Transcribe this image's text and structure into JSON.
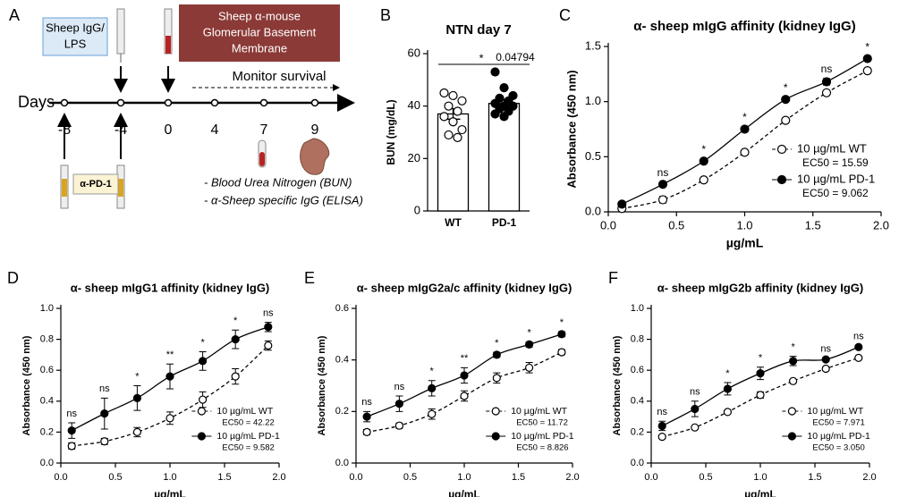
{
  "diagram": {
    "panel": "A",
    "axis_label": "Days",
    "days": [
      "-8",
      "-4",
      "0",
      "4",
      "7",
      "9"
    ],
    "injection_1": [
      "Sheep IgG/",
      "LPS"
    ],
    "injection_2": [
      "Sheep α-mouse",
      "Glomerular Basement",
      "Membrane"
    ],
    "treatment": "α-PD-1",
    "monitor": "Monitor survival",
    "readouts": [
      "- Blood Urea Nitrogen (BUN)",
      "- α-Sheep specific IgG (ELISA)"
    ]
  },
  "chart_data": [
    {
      "panel": "B",
      "type": "bar",
      "title": "NTN day 7",
      "ylabel": "BUN (mg/dL)",
      "categories": [
        "WT",
        "PD-1"
      ],
      "values": [
        37,
        41
      ],
      "errors": [
        2,
        1.5
      ],
      "points": [
        [
          45,
          44,
          42,
          40,
          38,
          36,
          34,
          31,
          29,
          28
        ],
        [
          53,
          47,
          44,
          43,
          42,
          41,
          40,
          40,
          39,
          38,
          37,
          36
        ]
      ],
      "fills": [
        "#ffffff",
        "#000000"
      ],
      "ylim": [
        0,
        60
      ],
      "yticks": [
        0,
        20,
        40,
        60
      ],
      "significance": "*",
      "p_value": 0.04794
    },
    {
      "panel": "C",
      "type": "line",
      "title": "α- sheep mIgG affinity (kidney IgG)",
      "xlabel": "µg/mL",
      "ylabel": "Absorbance (450 nm)",
      "x": [
        0.1,
        0.4,
        0.7,
        1.0,
        1.3,
        1.6,
        1.9
      ],
      "xlim": [
        0,
        2
      ],
      "xticks": [
        {
          "value": 0,
          "label": "0.0"
        },
        0.5,
        {
          "value": 1,
          "label": "1.0"
        },
        1.5,
        {
          "value": 2,
          "label": "2.0"
        }
      ],
      "ylim": [
        0,
        1.5
      ],
      "yticks": [
        {
          "value": 0,
          "label": "0.0"
        },
        0.5,
        {
          "value": 1,
          "label": "1.0"
        },
        1.5
      ],
      "series": [
        {
          "name": "10 µg/mL WT",
          "ec50": "EC50 = 15.59",
          "color": "#000000",
          "marker": "open",
          "dashed": true,
          "values": [
            0.03,
            0.11,
            0.29,
            0.54,
            0.83,
            1.08,
            1.28
          ],
          "errors": [
            0.01,
            0.03,
            0.02,
            0.02,
            0.02,
            0.02,
            0.02
          ]
        },
        {
          "name": "10 µg/mL PD-1",
          "ec50": "EC50 = 9.062",
          "color": "#000000",
          "marker": "filled",
          "dashed": false,
          "values": [
            0.07,
            0.25,
            0.46,
            0.75,
            1.02,
            1.18,
            1.39
          ],
          "errors": [
            0.01,
            0.02,
            0.02,
            0.02,
            0.02,
            0.03,
            0.02
          ]
        }
      ],
      "annotations": [
        null,
        "ns",
        "*",
        "*",
        "*",
        "ns",
        "*"
      ]
    },
    {
      "panel": "D",
      "type": "line",
      "title": "α- sheep mIgG1 affinity (kidney IgG)",
      "xlabel": "µg/mL",
      "ylabel": "Absorbance (450 nm)",
      "x": [
        0.1,
        0.4,
        0.7,
        1.0,
        1.3,
        1.6,
        1.9
      ],
      "xlim": [
        0,
        2
      ],
      "xticks": [
        {
          "value": 0,
          "label": "0.0"
        },
        0.5,
        {
          "value": 1,
          "label": "1.0"
        },
        1.5,
        {
          "value": 2,
          "label": "2.0"
        }
      ],
      "ylim": [
        0,
        1
      ],
      "yticks": [
        {
          "value": 0,
          "label": "0.0"
        },
        0.2,
        0.4,
        0.6,
        0.8,
        {
          "value": 1,
          "label": "1.0"
        }
      ],
      "series": [
        {
          "name": "10 µg/mL WT",
          "ec50": "EC50 = 42.22",
          "color": "#000000",
          "marker": "open",
          "dashed": true,
          "values": [
            0.11,
            0.14,
            0.2,
            0.29,
            0.41,
            0.56,
            0.76
          ],
          "errors": [
            0.02,
            0.02,
            0.03,
            0.04,
            0.05,
            0.05,
            0.03
          ]
        },
        {
          "name": "10 µg/mL PD-1",
          "ec50": "EC50 = 9.582",
          "color": "#000000",
          "marker": "filled",
          "dashed": false,
          "values": [
            0.21,
            0.32,
            0.42,
            0.56,
            0.66,
            0.8,
            0.88
          ],
          "errors": [
            0.05,
            0.1,
            0.08,
            0.08,
            0.06,
            0.06,
            0.03
          ]
        }
      ],
      "annotations": [
        "ns",
        "ns",
        "*",
        "**",
        "*",
        "*",
        "ns"
      ]
    },
    {
      "panel": "E",
      "type": "line",
      "title": "α- sheep mIgG2a/c affinity (kidney IgG)",
      "xlabel": "µg/mL",
      "ylabel": "Absorbance (450 nm)",
      "x": [
        0.1,
        0.4,
        0.7,
        1.0,
        1.3,
        1.6,
        1.9
      ],
      "xlim": [
        0,
        2
      ],
      "xticks": [
        {
          "value": 0,
          "label": "0.0"
        },
        0.5,
        {
          "value": 1,
          "label": "1.0"
        },
        1.5,
        {
          "value": 2,
          "label": "2.0"
        }
      ],
      "ylim": [
        0,
        0.6
      ],
      "yticks": [
        {
          "value": 0,
          "label": "0.0"
        },
        0.2,
        0.4,
        0.6
      ],
      "series": [
        {
          "name": "10 µg/mL WT",
          "ec50": "EC50 = 11.72",
          "color": "#000000",
          "marker": "open",
          "dashed": true,
          "values": [
            0.12,
            0.145,
            0.19,
            0.26,
            0.33,
            0.37,
            0.43
          ],
          "errors": [
            0.01,
            0.01,
            0.02,
            0.02,
            0.02,
            0.02,
            0.01
          ]
        },
        {
          "name": "10 µg/mL PD-1",
          "ec50": "EC50 = 8.826",
          "color": "#000000",
          "marker": "filled",
          "dashed": false,
          "values": [
            0.18,
            0.23,
            0.29,
            0.34,
            0.42,
            0.46,
            0.5
          ],
          "errors": [
            0.02,
            0.03,
            0.03,
            0.03,
            0.01,
            0.01,
            0.01
          ]
        }
      ],
      "annotations": [
        "ns",
        "ns",
        "*",
        "**",
        "*",
        "*",
        "*"
      ]
    },
    {
      "panel": "F",
      "type": "line",
      "title": "α- sheep mIgG2b affinity (kidney IgG)",
      "xlabel": "µg/mL",
      "ylabel": "Absorbance (450 nm)",
      "x": [
        0.1,
        0.4,
        0.7,
        1.0,
        1.3,
        1.6,
        1.9
      ],
      "xlim": [
        0,
        2
      ],
      "xticks": [
        {
          "value": 0,
          "label": "0.0"
        },
        0.5,
        {
          "value": 1,
          "label": "1.0"
        },
        1.5,
        {
          "value": 2,
          "label": "2.0"
        }
      ],
      "ylim": [
        0,
        1
      ],
      "yticks": [
        {
          "value": 0,
          "label": "0.0"
        },
        0.2,
        0.4,
        0.6,
        0.8,
        {
          "value": 1,
          "label": "1.0"
        }
      ],
      "series": [
        {
          "name": "10 µg/mL WT",
          "ec50": "EC50 = 7.971",
          "color": "#000000",
          "marker": "open",
          "dashed": true,
          "values": [
            0.17,
            0.23,
            0.33,
            0.44,
            0.53,
            0.61,
            0.68
          ],
          "errors": [
            0.01,
            0.01,
            0.01,
            0.02,
            0.01,
            0.01,
            0.01
          ]
        },
        {
          "name": "10 µg/mL PD-1",
          "ec50": "EC50 = 3.050",
          "color": "#000000",
          "marker": "filled",
          "dashed": false,
          "values": [
            0.24,
            0.35,
            0.48,
            0.58,
            0.66,
            0.67,
            0.75
          ],
          "errors": [
            0.03,
            0.05,
            0.04,
            0.04,
            0.03,
            0.01,
            0.01
          ]
        }
      ],
      "annotations": [
        "ns",
        "ns",
        "*",
        "*",
        "*",
        "ns",
        "ns"
      ]
    }
  ]
}
